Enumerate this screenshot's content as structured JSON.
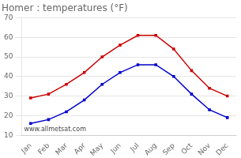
{
  "chart_data": {
    "type": "line",
    "title": "Homer : temperatures (°F)",
    "categories": [
      "Jan",
      "Feb",
      "Mar",
      "Apr",
      "May",
      "Jun",
      "Jul",
      "Aug",
      "Sep",
      "Oct",
      "Nov",
      "Dec"
    ],
    "series": [
      {
        "color": "#cc0000",
        "marker": "square",
        "values": [
          29,
          31,
          36,
          42,
          50,
          56,
          61,
          61,
          54,
          43,
          34,
          30
        ]
      },
      {
        "color": "#0000cc",
        "marker": "square",
        "values": [
          16,
          18,
          22,
          28,
          36,
          42,
          46,
          46,
          40,
          31,
          23,
          19
        ]
      }
    ],
    "ylim": [
      10,
      70
    ],
    "yticks": [
      10,
      20,
      30,
      40,
      50,
      60,
      70
    ],
    "grid": "y",
    "annotations": [
      "www.allmetsat.com"
    ]
  }
}
